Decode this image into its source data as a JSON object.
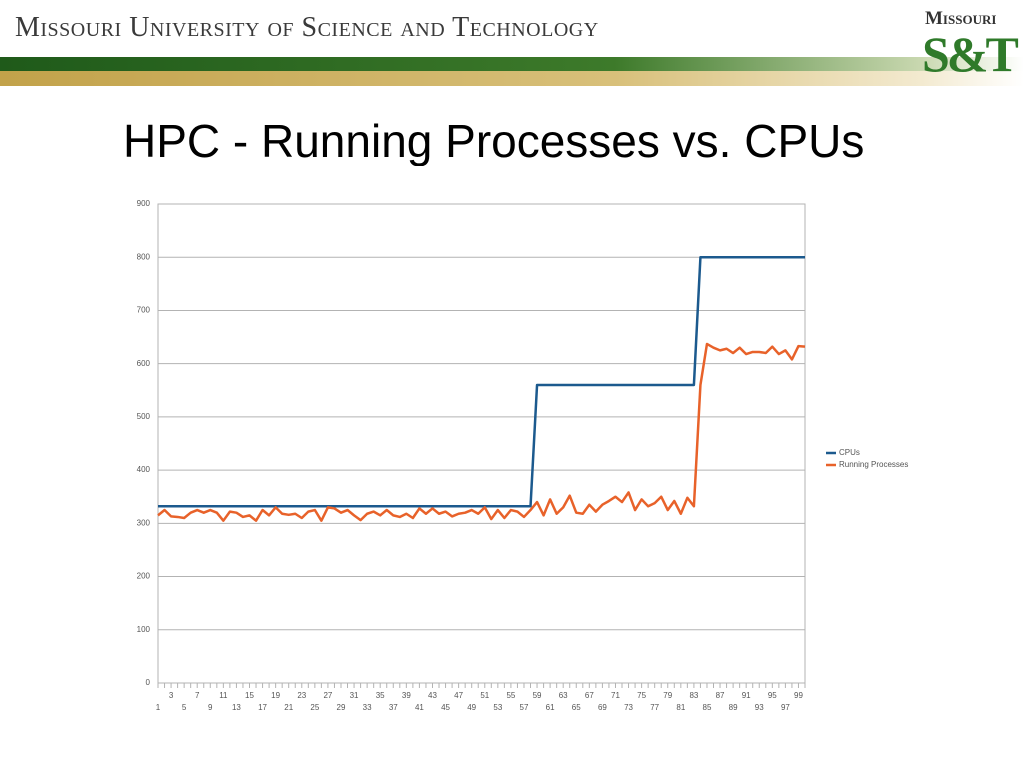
{
  "header": {
    "title": "Missouri University of Science and Technology",
    "logo_top": "Missouri",
    "logo_bottom": "S&T"
  },
  "slide_title": "HPC - Running Processes vs. CPUs",
  "chart_data": {
    "type": "line",
    "categories": [
      "1",
      null,
      "3",
      null,
      "5",
      null,
      "7",
      null,
      "9",
      null,
      "11",
      null,
      "13",
      null,
      "15",
      null,
      "17",
      null,
      "19",
      null,
      "21",
      null,
      "23",
      null,
      "25",
      null,
      "27",
      null,
      "29",
      null,
      "31",
      null,
      "33",
      null,
      "35",
      null,
      "37",
      null,
      "39",
      null,
      "41",
      null,
      "43",
      null,
      "45",
      null,
      "47",
      null,
      "49",
      null,
      "51",
      null,
      "53",
      null,
      "55",
      null,
      "57",
      null,
      "59",
      null,
      "61",
      null,
      "63",
      null,
      "65",
      null,
      "67",
      null,
      "69",
      null,
      "71",
      null,
      "73",
      null,
      "75",
      null,
      "77",
      null,
      "79",
      null,
      "81",
      null,
      "83",
      null,
      "85",
      null,
      "87",
      null,
      "89",
      null,
      "91",
      null,
      "93",
      null,
      "95",
      null,
      "97",
      null,
      "99",
      null
    ],
    "series": [
      {
        "name": "CPUs",
        "color": "#1c5a8e",
        "values": [
          332,
          332,
          332,
          332,
          332,
          332,
          332,
          332,
          332,
          332,
          332,
          332,
          332,
          332,
          332,
          332,
          332,
          332,
          332,
          332,
          332,
          332,
          332,
          332,
          332,
          332,
          332,
          332,
          332,
          332,
          332,
          332,
          332,
          332,
          332,
          332,
          332,
          332,
          332,
          332,
          332,
          332,
          332,
          332,
          332,
          332,
          332,
          332,
          332,
          332,
          332,
          332,
          332,
          332,
          332,
          332,
          332,
          332,
          560,
          560,
          560,
          560,
          560,
          560,
          560,
          560,
          560,
          560,
          560,
          560,
          560,
          560,
          560,
          560,
          560,
          560,
          560,
          560,
          560,
          560,
          560,
          560,
          560,
          800,
          800,
          800,
          800,
          800,
          800,
          800,
          800,
          800,
          800,
          800,
          800,
          800,
          800,
          800,
          800,
          800
        ]
      },
      {
        "name": "Running Processes",
        "color": "#e8622a",
        "values": [
          315,
          325,
          313,
          312,
          310,
          320,
          325,
          320,
          325,
          320,
          305,
          322,
          320,
          312,
          315,
          305,
          325,
          315,
          330,
          318,
          316,
          318,
          310,
          322,
          325,
          305,
          330,
          328,
          320,
          325,
          315,
          306,
          318,
          322,
          315,
          325,
          315,
          312,
          318,
          310,
          328,
          318,
          328,
          318,
          322,
          313,
          318,
          320,
          325,
          318,
          330,
          308,
          325,
          310,
          325,
          322,
          312,
          325,
          340,
          315,
          345,
          318,
          330,
          352,
          320,
          318,
          335,
          322,
          335,
          342,
          350,
          340,
          358,
          325,
          345,
          332,
          338,
          350,
          325,
          342,
          318,
          348,
          332,
          560,
          637,
          630,
          625,
          628,
          620,
          630,
          618,
          622,
          622,
          620,
          632,
          618,
          625,
          608,
          633,
          632
        ]
      }
    ],
    "ylim": [
      0,
      900
    ],
    "yticks": [
      0,
      100,
      200,
      300,
      400,
      500,
      600,
      700,
      800,
      900
    ],
    "grid": true,
    "legend": "right"
  }
}
